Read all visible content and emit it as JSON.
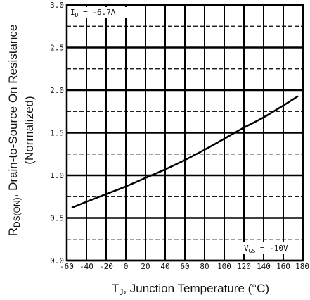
{
  "chart_data": {
    "type": "line",
    "xlabel": {
      "main": "T",
      "sub": "J",
      "rest": ", Junction Temperature (°C)"
    },
    "ylabel": {
      "main": "R",
      "sub": "DS(ON)",
      "rest": ", Drain-to-Source On Resistance",
      "line2": "(Normalized)"
    },
    "xlim": [
      -60,
      180
    ],
    "ylim": [
      0.0,
      3.0
    ],
    "x_ticks": [
      -60,
      -40,
      -20,
      0,
      20,
      40,
      60,
      80,
      100,
      120,
      140,
      160,
      180
    ],
    "y_ticks": [
      "0.0",
      "0.5",
      "1.0",
      "1.5",
      "2.0",
      "2.5",
      "3.0"
    ],
    "major_y_step": 0.5,
    "minor_y_step": 0.25,
    "grid": true,
    "annotations": {
      "id": {
        "main": "I",
        "sub": "D",
        "rest": " = -6.7A"
      },
      "vgs": {
        "main": "V",
        "sub": "GS",
        "rest": " = -10V"
      }
    },
    "series": [
      {
        "x": [
          -55,
          -40,
          -20,
          0,
          20,
          40,
          60,
          80,
          100,
          120,
          140,
          160,
          175
        ],
        "y": [
          0.62,
          0.69,
          0.78,
          0.87,
          0.97,
          1.07,
          1.18,
          1.3,
          1.43,
          1.56,
          1.68,
          1.82,
          1.93
        ]
      }
    ]
  }
}
